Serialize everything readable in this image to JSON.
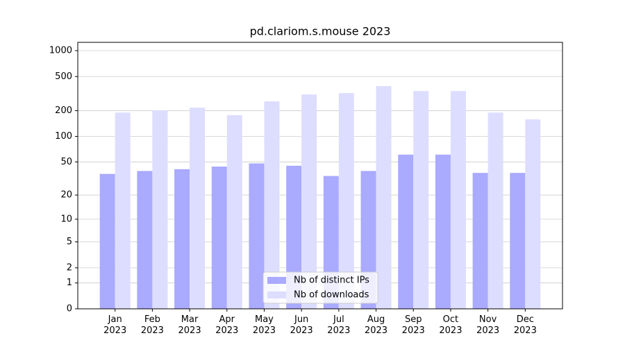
{
  "chart_data": {
    "type": "bar",
    "title": "pd.clariom.s.mouse 2023",
    "categories": [
      "Jan\n2023",
      "Feb\n2023",
      "Mar\n2023",
      "Apr\n2023",
      "May\n2023",
      "Jun\n2023",
      "Jul\n2023",
      "Aug\n2023",
      "Sep\n2023",
      "Oct\n2023",
      "Nov\n2023",
      "Dec\n2023"
    ],
    "series": [
      {
        "name": "Nb of distinct IPs",
        "color": "#aaaaff",
        "values": [
          36,
          39,
          41,
          44,
          48,
          45,
          34,
          39,
          61,
          61,
          37,
          37
        ]
      },
      {
        "name": "Nb of downloads",
        "color": "#ddddff",
        "values": [
          190,
          201,
          217,
          177,
          257,
          309,
          321,
          387,
          339,
          339,
          190,
          158
        ]
      }
    ],
    "scale": "log1p",
    "ylim": [
      0,
      1250
    ],
    "yticks": [
      0,
      1,
      2,
      5,
      10,
      20,
      50,
      100,
      200,
      500,
      1000
    ],
    "grid": true,
    "legend": "lower center"
  }
}
